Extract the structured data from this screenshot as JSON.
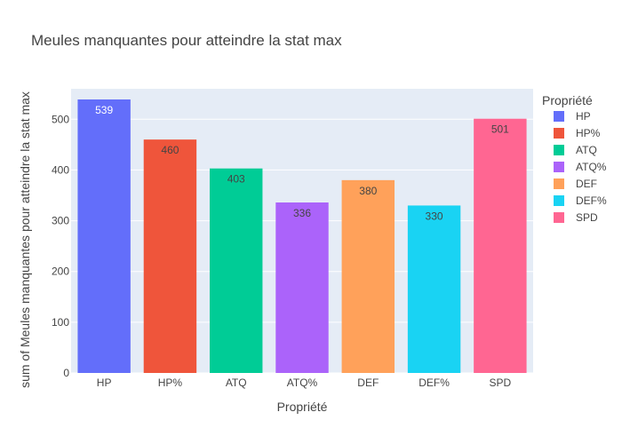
{
  "chart_data": {
    "type": "bar",
    "title": "Meules manquantes pour atteindre la stat max",
    "xlabel": "Propriété",
    "ylabel": "sum of Meules manquantes pour atteindre la stat max",
    "ylim": [
      0,
      560
    ],
    "yticks": [
      0,
      100,
      200,
      300,
      400,
      500
    ],
    "grid": true,
    "legend_title": "Propriété",
    "legend_placement": "right",
    "categories": [
      "HP",
      "HP%",
      "ATQ",
      "ATQ%",
      "DEF",
      "DEF%",
      "SPD"
    ],
    "series": [
      {
        "name": "HP",
        "category": "HP",
        "value": 539,
        "color": "#636efa",
        "label_color": "#ffffff"
      },
      {
        "name": "HP%",
        "category": "HP%",
        "value": 460,
        "color": "#ef553b",
        "label_color": "#444444"
      },
      {
        "name": "ATQ",
        "category": "ATQ",
        "value": 403,
        "color": "#00cc96",
        "label_color": "#444444"
      },
      {
        "name": "ATQ%",
        "category": "ATQ%",
        "value": 336,
        "color": "#ab63fa",
        "label_color": "#444444"
      },
      {
        "name": "DEF",
        "category": "DEF",
        "value": 380,
        "color": "#ffa15a",
        "label_color": "#444444"
      },
      {
        "name": "DEF%",
        "category": "DEF%",
        "value": 330,
        "color": "#19d3f3",
        "label_color": "#444444"
      },
      {
        "name": "SPD",
        "category": "SPD",
        "value": 501,
        "color": "#ff6692",
        "label_color": "#444444"
      }
    ]
  }
}
